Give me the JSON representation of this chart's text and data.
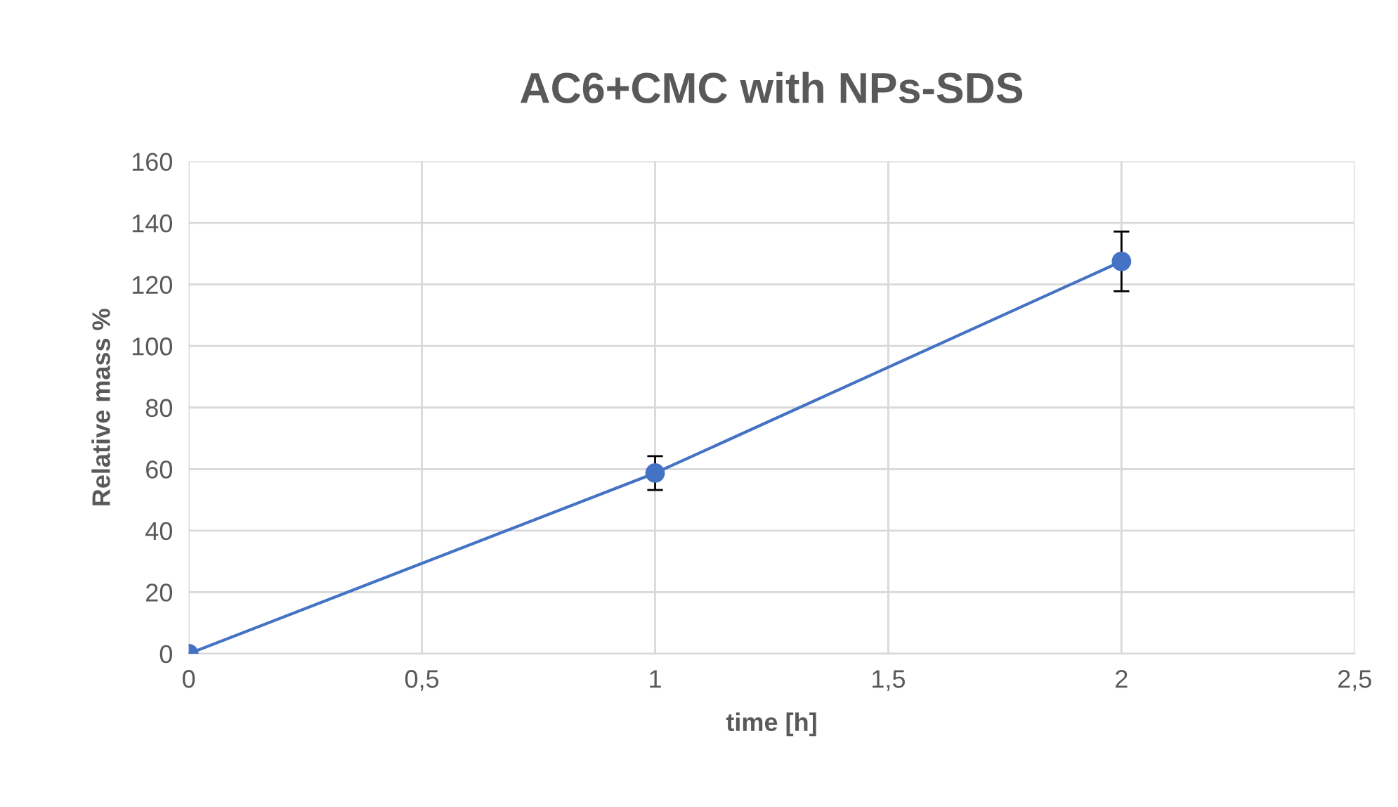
{
  "chart_data": {
    "type": "line",
    "title": "AC6+CMC with NPs-SDS",
    "xlabel": "time [h]",
    "ylabel": "Relative mass %",
    "x": [
      0,
      1,
      2
    ],
    "series": [
      {
        "color": "#4472c4",
        "values": [
          0,
          58.7,
          127.5
        ],
        "errors": [
          null,
          5.5,
          9.7
        ]
      }
    ],
    "xlim": [
      0,
      2.5
    ],
    "xticks": [
      0,
      {
        "value": 0.5,
        "label": "0,5"
      },
      1,
      {
        "value": 1.5,
        "label": "1,5"
      },
      2,
      {
        "value": 2.5,
        "label": "2,5"
      }
    ],
    "ylim": [
      0,
      160
    ],
    "yticks": [
      0,
      20,
      40,
      60,
      80,
      100,
      120,
      140,
      160
    ],
    "grid": true,
    "marker": "circle",
    "line_style": "solid"
  }
}
